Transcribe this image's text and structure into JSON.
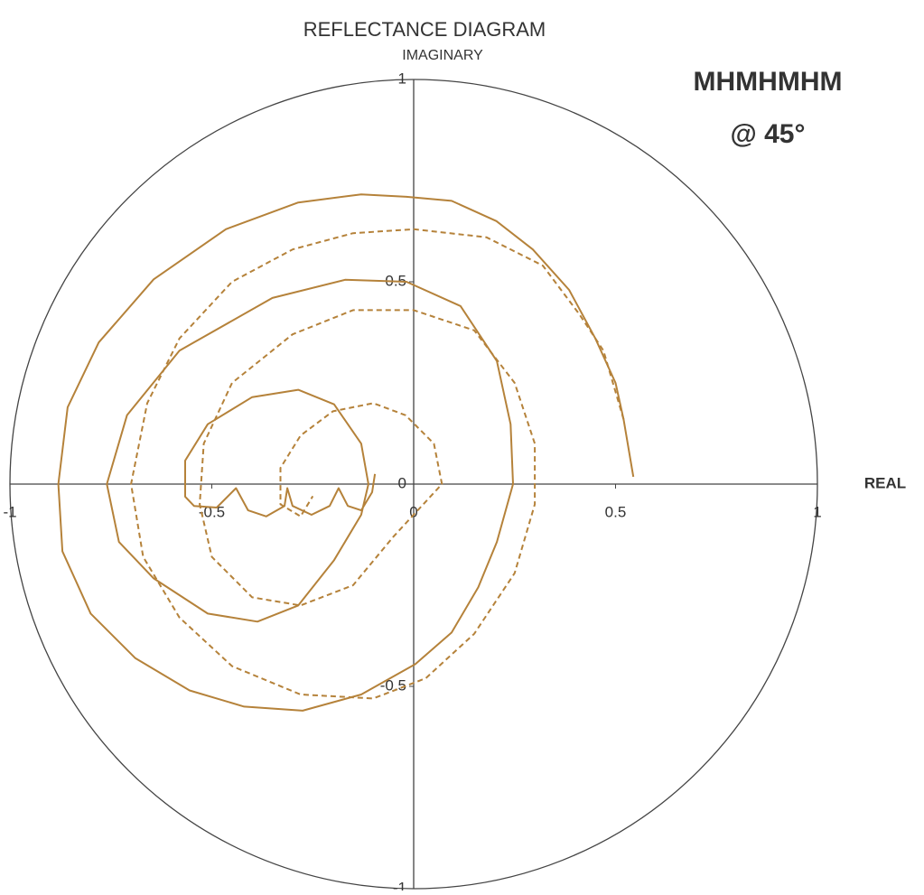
{
  "chart_data": {
    "type": "line",
    "title": "REFLECTANCE DIAGRAM",
    "ylabel": "IMAGINARY",
    "xlabel": "REAL",
    "annotations": [
      "MHMHMHM",
      "@ 45°"
    ],
    "xlim": [
      -1,
      1
    ],
    "ylim": [
      -1,
      1
    ],
    "xticks": [
      -1,
      -0.5,
      0,
      0.5,
      1
    ],
    "yticks": [
      1,
      0.5,
      0,
      -0.5,
      -1
    ],
    "unit_circle": true,
    "series": [
      {
        "color": "#b5823a",
        "style": "solid",
        "x": [
          0.544,
          0.52,
          0.5,
          0.45,
          0.385,
          0.295,
          0.205,
          0.094,
          -0.018,
          -0.13,
          -0.286,
          -0.465,
          -0.644,
          -0.78,
          -0.857,
          -0.88,
          -0.87,
          -0.8,
          -0.69,
          -0.555,
          -0.42,
          -0.275,
          -0.13,
          0.004,
          0.094,
          0.16,
          0.206,
          0.246,
          0.24,
          0.206,
          0.116,
          -0.018,
          -0.17,
          -0.35,
          -0.58,
          -0.71,
          -0.76,
          -0.73,
          -0.644,
          -0.51,
          -0.387,
          -0.286,
          -0.197,
          -0.13,
          -0.112,
          -0.13,
          -0.197,
          -0.286,
          -0.4,
          -0.51,
          -0.566,
          -0.566,
          -0.544,
          -0.488,
          -0.44,
          -0.41,
          -0.365,
          -0.32,
          -0.313,
          -0.3,
          -0.253,
          -0.208,
          -0.186,
          -0.163,
          -0.13,
          -0.103,
          -0.096
        ],
        "y": [
          0.018,
          0.16,
          0.25,
          0.36,
          0.48,
          0.58,
          0.65,
          0.7,
          0.71,
          0.716,
          0.696,
          0.63,
          0.506,
          0.35,
          0.19,
          0,
          -0.166,
          -0.32,
          -0.43,
          -0.51,
          -0.55,
          -0.56,
          -0.52,
          -0.445,
          -0.367,
          -0.255,
          -0.143,
          0,
          0.148,
          0.304,
          0.44,
          0.5,
          0.505,
          0.46,
          0.33,
          0.17,
          0,
          -0.143,
          -0.233,
          -0.32,
          -0.34,
          -0.3,
          -0.188,
          -0.076,
          0,
          0.1,
          0.197,
          0.233,
          0.215,
          0.148,
          0.058,
          -0.031,
          -0.054,
          -0.058,
          -0.01,
          -0.065,
          -0.08,
          -0.054,
          -0.01,
          -0.054,
          -0.076,
          -0.054,
          -0.01,
          -0.054,
          -0.065,
          -0.02,
          0.025
        ]
      },
      {
        "color": "#b5823a",
        "style": "dashed",
        "x": [
          0.52,
          0.47,
          0.41,
          0.32,
          0.18,
          0.0,
          -0.15,
          -0.3,
          -0.45,
          -0.58,
          -0.66,
          -0.7,
          -0.67,
          -0.58,
          -0.45,
          -0.28,
          -0.1,
          0.03,
          0.15,
          0.25,
          0.3,
          0.3,
          0.25,
          0.15,
          0.0,
          -0.15,
          -0.3,
          -0.45,
          -0.52,
          -0.53,
          -0.5,
          -0.4,
          -0.28,
          -0.15,
          -0.05,
          0.07,
          0.05,
          -0.02,
          -0.1,
          -0.2,
          -0.28,
          -0.33,
          -0.33,
          -0.28,
          -0.25
        ],
        "y": [
          0.16,
          0.33,
          0.42,
          0.54,
          0.61,
          0.63,
          0.62,
          0.58,
          0.5,
          0.36,
          0.2,
          0.0,
          -0.18,
          -0.33,
          -0.45,
          -0.52,
          -0.53,
          -0.48,
          -0.37,
          -0.22,
          -0.05,
          0.1,
          0.25,
          0.38,
          0.43,
          0.43,
          0.37,
          0.25,
          0.1,
          -0.05,
          -0.18,
          -0.28,
          -0.3,
          -0.25,
          -0.13,
          0.0,
          0.1,
          0.17,
          0.2,
          0.18,
          0.12,
          0.04,
          -0.05,
          -0.08,
          -0.03
        ]
      }
    ]
  }
}
